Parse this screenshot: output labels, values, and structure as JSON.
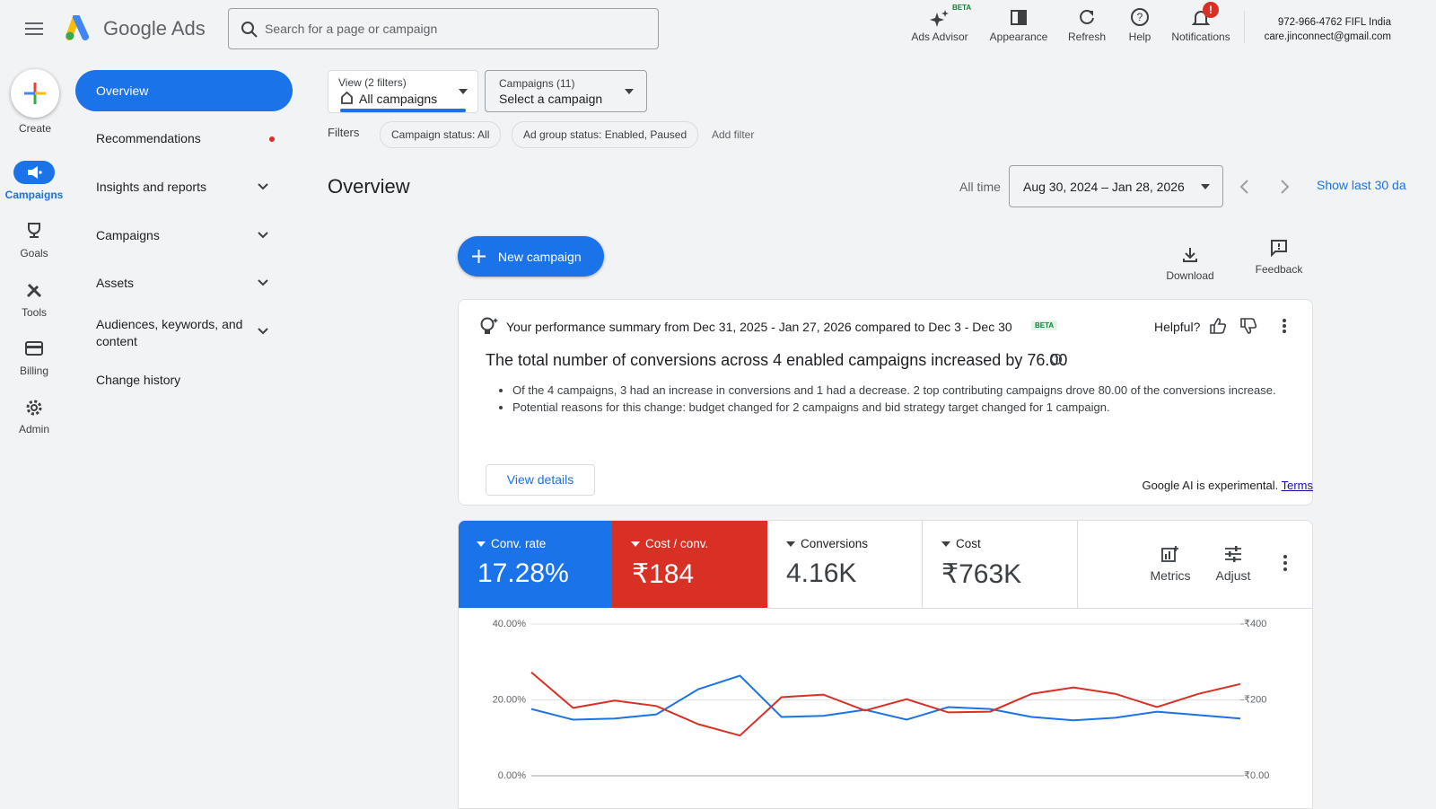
{
  "header": {
    "product": "Google Ads",
    "search_placeholder": "Search for a page or campaign",
    "tools": [
      {
        "label": "Ads Advisor",
        "badge": "BETA"
      },
      {
        "label": "Appearance"
      },
      {
        "label": "Refresh"
      },
      {
        "label": "Help"
      },
      {
        "label": "Notifications",
        "badge": "!"
      }
    ],
    "account": {
      "line1": "972-966-4762 FIFL India",
      "line2": "care.jinconnect@gmail.com"
    }
  },
  "rail": [
    "Create",
    "Campaigns",
    "Goals",
    "Tools",
    "Billing",
    "Admin"
  ],
  "nav": [
    "Overview",
    "Recommendations",
    "Insights and reports",
    "Campaigns",
    "Assets",
    "Audiences, keywords, and content",
    "Change history"
  ],
  "selectors": {
    "view": {
      "caption": "View (2 filters)",
      "value": "All campaigns"
    },
    "campaigns": {
      "caption": "Campaigns (11)",
      "value": "Select a campaign"
    }
  },
  "filters": {
    "label": "Filters",
    "chips": [
      "Campaign status: All",
      "Ad group status: Enabled, Paused"
    ],
    "add": "Add filter"
  },
  "overview": {
    "title": "Overview",
    "range_label": "All time",
    "date_range": "Aug 30, 2024 – Jan 28, 2026",
    "show_last": "Show last 30 da",
    "new_campaign": "New campaign",
    "download": "Download",
    "feedback": "Feedback"
  },
  "summary": {
    "heading": "Your performance summary from Dec 31, 2025 - Jan 27, 2026 compared to Dec 3 - Dec 30",
    "badge": "BETA",
    "helpful": "Helpful?",
    "headline": "The total number of conversions across 4 enabled campaigns increased by 76.00",
    "bullets": [
      "Of the 4 campaigns, 3 had an increase in conversions and 1 had a decrease. 2 top contributing campaigns drove 80.00 of the conversions increase.",
      "Potential reasons for this change: budget changed for 2 campaigns and bid strategy target changed for 1 campaign."
    ],
    "button": "View details",
    "disclaimer": "Google AI is experimental.",
    "terms": "Terms"
  },
  "metrics": [
    {
      "value": "17.28%"
    },
    {
      "value": "₹184"
    },
    {
      "name": "Conversions",
      "value": "4.16K"
    },
    {
      "name": "Cost",
      "value": "₹763K"
    }
  ],
  "metric_tools": [
    "Metrics",
    "Adjust"
  ],
  "chart_data": {
    "type": "line",
    "series": [
      {
        "name": "Conv. rate",
        "color": "#1a73e8",
        "values": [
          17.6,
          14.8,
          15.1,
          16.2,
          22.8,
          26.4,
          15.5,
          15.8,
          17.4,
          14.8,
          18.1,
          17.6,
          15.5,
          14.6,
          15.3,
          16.9,
          16.0,
          15.1
        ]
      },
      {
        "name": "Cost / conv.",
        "color": "#d93025",
        "axis": "y2",
        "values": [
          273,
          179,
          198,
          184,
          136,
          106,
          207,
          214,
          172,
          202,
          167,
          169,
          216,
          233,
          216,
          181,
          216,
          242
        ]
      }
    ],
    "ylim": [
      0,
      40
    ],
    "yticks": [
      {
        "value": 0,
        "label": "0.00%"
      },
      {
        "value": 20,
        "label": "20.00%"
      },
      {
        "value": 40,
        "label": "40.00%"
      }
    ],
    "y2lim": [
      0,
      400
    ],
    "y2ticks": [
      {
        "value": 0,
        "label": "₹0.00"
      },
      {
        "value": 200,
        "label": "₹200"
      },
      {
        "value": 400,
        "label": "₹400"
      }
    ],
    "grid": true
  }
}
